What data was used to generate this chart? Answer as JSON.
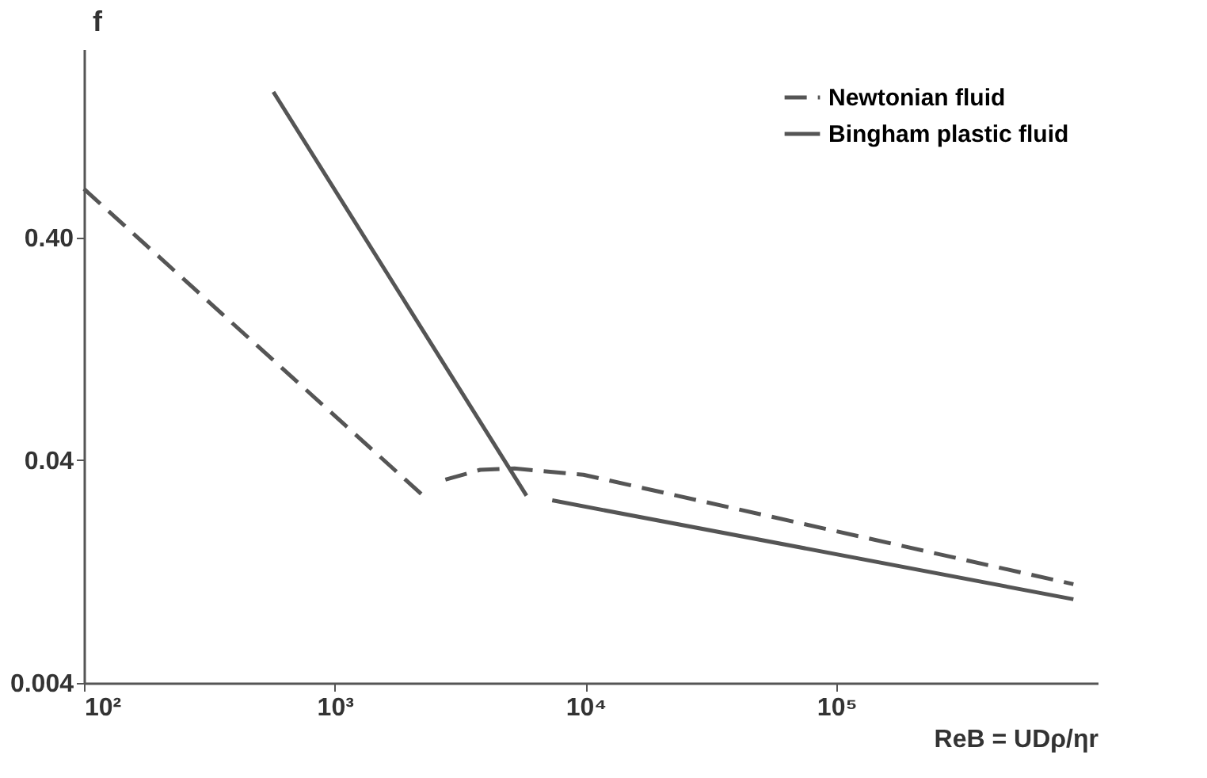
{
  "chart_data": {
    "type": "line",
    "xlabel": "ReB = UDρ/ηr",
    "ylabel": "f",
    "log": "xy",
    "xlim": [
      100,
      1100000
    ],
    "ylim": [
      0.004,
      2.8
    ],
    "xticks": [
      {
        "value": 100,
        "label": "10²"
      },
      {
        "value": 1000,
        "label": "10³"
      },
      {
        "value": 10000,
        "label": "10⁴"
      },
      {
        "value": 100000,
        "label": "10⁵"
      }
    ],
    "yticks": [
      0.004,
      0.04,
      {
        "value": 0.4,
        "label": "0.40"
      }
    ],
    "grid": false,
    "legend": "top right",
    "marker": "none",
    "series": [
      {
        "name": "Newtonian fluid",
        "color": "#555555",
        "line_style": "dashed",
        "x": [
          100,
          2250,
          2500,
          2760,
          3800,
          5200,
          9800,
          880000
        ],
        "values": [
          0.66,
          0.0277,
          null,
          0.0327,
          0.0362,
          0.0367,
          0.0344,
          0.0111
        ]
      },
      {
        "name": "Bingham plastic fluid",
        "color": "#555555",
        "line_style": "solid",
        "x": [
          569,
          5810,
          6500,
          7360,
          880000
        ],
        "values": [
          1.8,
          0.0277,
          null,
          0.0264,
          0.0095
        ]
      }
    ]
  }
}
